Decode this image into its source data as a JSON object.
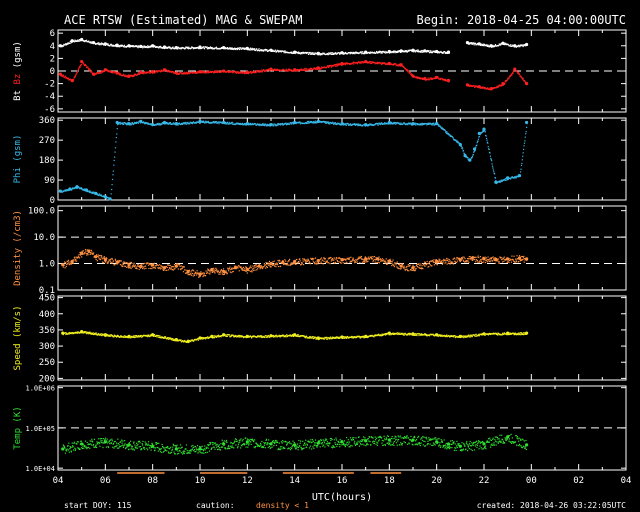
{
  "header": {
    "title": "ACE RTSW (Estimated) MAG & SWEPAM",
    "begin": "Begin: 2018-04-25 04:00:00UTC"
  },
  "footer": {
    "start_doy": "start DOY: 115",
    "caution_label": "caution:",
    "caution_text": "density < 1",
    "created": "created: 2018-04-26 03:22:05UTC"
  },
  "colors": {
    "bt": "#ffffff",
    "bz": "#ff2020",
    "phi": "#38b8e8",
    "density": "#ff9040",
    "speed": "#f0f020",
    "temp": "#30e030",
    "frame": "#ffffff",
    "caution": "#ff9040"
  },
  "chart_data": [
    {
      "type": "scatter",
      "id": "mag",
      "ylabel_parts": [
        "Bt",
        "Bz",
        "(gsm)"
      ],
      "ylim": [
        -6.5,
        6.5
      ],
      "yticks": [
        6,
        4,
        2,
        0,
        -2,
        -4,
        -6
      ],
      "ref_lines": [
        0
      ],
      "x_unit": "hours",
      "series": [
        {
          "key": "bt",
          "x": [
            4.1,
            4.6,
            5,
            5.5,
            6,
            6.5,
            7,
            7.5,
            8,
            8.5,
            9,
            10,
            11,
            12,
            13,
            14,
            15,
            16,
            17,
            18,
            18.5,
            19,
            19.5,
            20,
            20.5,
            21,
            21.3,
            21.8,
            22.3,
            22.8,
            23.3,
            23.8
          ],
          "y": [
            4.0,
            4.8,
            5.0,
            4.5,
            4.3,
            4.1,
            4.0,
            3.9,
            4.0,
            3.8,
            3.7,
            3.8,
            3.7,
            3.6,
            3.3,
            3.0,
            2.8,
            2.9,
            3.0,
            3.1,
            3.2,
            3.3,
            3.2,
            3.1,
            3.0,
            null,
            4.5,
            4.3,
            4.0,
            4.4,
            4.0,
            4.2
          ]
        },
        {
          "key": "bz",
          "x": [
            4.1,
            4.6,
            5,
            5.5,
            6,
            6.5,
            7,
            7.5,
            8,
            8.5,
            9,
            10,
            11,
            12,
            13,
            14,
            15,
            16,
            17,
            18,
            18.5,
            19,
            19.5,
            20,
            20.5,
            21,
            21.3,
            21.8,
            22.3,
            22.8,
            23.3,
            23.8
          ],
          "y": [
            -0.5,
            -1.5,
            1.5,
            -0.5,
            0.2,
            -0.3,
            -0.8,
            -0.2,
            -0.1,
            0.2,
            -0.3,
            -0.1,
            0.0,
            -0.2,
            0.3,
            0.2,
            0.5,
            1.2,
            1.5,
            1.2,
            1.0,
            -0.8,
            -1.2,
            -1.0,
            -1.5,
            null,
            -2.2,
            -2.5,
            -2.8,
            -2.0,
            0.3,
            -2.0
          ]
        }
      ]
    },
    {
      "type": "scatter",
      "id": "phi",
      "ylabel": "Phi (gsm)",
      "ylim": [
        0,
        370
      ],
      "yticks": [
        360,
        270,
        180,
        90,
        0
      ],
      "x_unit": "hours",
      "series": [
        {
          "key": "phi",
          "x": [
            4.1,
            4.5,
            4.8,
            5.2,
            5.6,
            6,
            6.2,
            6.5,
            7,
            7.5,
            8,
            8.5,
            9,
            10,
            11,
            12,
            13,
            14,
            15,
            16,
            17,
            18,
            19,
            20,
            21,
            21.2,
            21.4,
            21.6,
            21.8,
            22,
            22.5,
            23,
            23.5,
            23.8
          ],
          "y": [
            40,
            50,
            60,
            45,
            30,
            15,
            5,
            350,
            345,
            355,
            340,
            350,
            345,
            355,
            350,
            345,
            340,
            350,
            355,
            345,
            340,
            350,
            345,
            345,
            250,
            200,
            180,
            230,
            300,
            320,
            80,
            100,
            110,
            350
          ]
        }
      ]
    },
    {
      "type": "scatter",
      "id": "density",
      "ylabel": "Density (/cm3)",
      "yscale": "log",
      "ylim": [
        0.1,
        150
      ],
      "yticks": [
        100.0,
        10.0,
        1.0,
        0.1
      ],
      "ytick_labels": [
        "100.0",
        "10.0",
        "1.0",
        "0.1"
      ],
      "ref_lines": [
        1.0,
        10.0
      ],
      "x_unit": "hours",
      "series": [
        {
          "key": "density",
          "x": [
            4.2,
            4.6,
            5,
            5.3,
            5.6,
            6,
            6.5,
            7,
            7.5,
            8,
            8.5,
            9,
            9.5,
            10,
            10.5,
            11,
            11.5,
            12,
            12.5,
            13,
            13.5,
            14,
            15,
            16,
            17,
            17.5,
            18,
            18.5,
            19,
            20,
            21,
            21.5,
            22,
            22.5,
            23,
            23.5,
            23.8
          ],
          "y": [
            0.9,
            1.2,
            2.5,
            3.0,
            1.8,
            1.4,
            1.1,
            0.9,
            0.8,
            0.9,
            0.7,
            0.8,
            0.5,
            0.4,
            0.6,
            0.5,
            0.7,
            0.6,
            0.8,
            1.0,
            1.1,
            1.2,
            1.3,
            1.4,
            1.5,
            1.5,
            1.2,
            0.8,
            0.7,
            1.2,
            1.4,
            1.6,
            1.5,
            1.4,
            1.5,
            1.6,
            1.5
          ]
        }
      ]
    },
    {
      "type": "scatter",
      "id": "speed",
      "ylabel": "Speed (km/s)",
      "ylim": [
        195,
        455
      ],
      "yticks": [
        450,
        400,
        350,
        300,
        250,
        200
      ],
      "x_unit": "hours",
      "series": [
        {
          "key": "speed",
          "x": [
            4.2,
            5,
            6,
            7,
            8,
            9,
            9.5,
            10,
            10.5,
            11,
            12,
            13,
            14,
            15,
            16,
            17,
            18,
            19,
            20,
            21,
            22,
            23,
            23.8
          ],
          "y": [
            340,
            345,
            335,
            330,
            335,
            320,
            315,
            325,
            330,
            335,
            330,
            332,
            335,
            325,
            328,
            330,
            340,
            338,
            335,
            330,
            338,
            340,
            340
          ]
        }
      ]
    },
    {
      "type": "scatter",
      "id": "temp",
      "ylabel": "Temp (K)",
      "yscale": "log",
      "ylim": [
        9000,
        1100000
      ],
      "yticks": [
        1000000,
        100000,
        10000
      ],
      "ytick_labels": [
        "1.0E+06",
        "1.0E+05",
        "1.0E+04"
      ],
      "ref_lines": [
        100000
      ],
      "x_unit": "hours",
      "series": [
        {
          "key": "temp",
          "x": [
            4.2,
            5,
            6,
            7,
            8,
            9,
            10,
            11,
            12,
            13,
            14,
            15,
            16,
            17,
            18,
            19,
            20,
            20.5,
            21,
            22,
            23,
            23.8
          ],
          "y": [
            30000,
            40000,
            45000,
            38000,
            35000,
            30000,
            30000,
            40000,
            45000,
            40000,
            38000,
            42000,
            45000,
            48000,
            50000,
            50000,
            45000,
            40000,
            35000,
            40000,
            60000,
            38000
          ]
        }
      ]
    }
  ],
  "xaxis": {
    "label": "UTC(hours)",
    "ticks": [
      "04",
      "06",
      "08",
      "10",
      "12",
      "14",
      "16",
      "18",
      "20",
      "22",
      "00",
      "02",
      "04"
    ],
    "range_hours": [
      4,
      28
    ]
  }
}
